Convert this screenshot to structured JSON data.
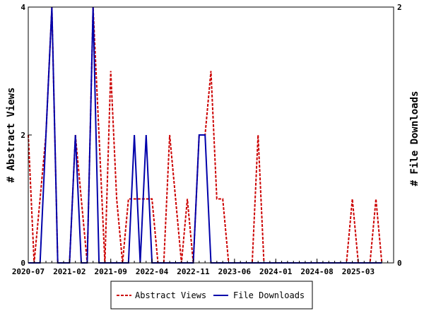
{
  "chart_data": {
    "type": "line",
    "title": "",
    "xlabel": "",
    "ylabel": "# Abstract Views",
    "y2label": "# File Downloads",
    "ylim": [
      0,
      4
    ],
    "y2lim": [
      0,
      2
    ],
    "yticks": [
      "0",
      "2",
      "4"
    ],
    "y2ticks": [
      "0",
      "2"
    ],
    "xrange": [
      "2020-07",
      "2025-09"
    ],
    "xtick_labels": [
      "2020-07",
      "2021-02",
      "2021-09",
      "2022-04",
      "2022-11",
      "2023-06",
      "2024-01",
      "2024-08",
      "2025-03"
    ],
    "grid": false,
    "legend_position": "bottom",
    "series": [
      {
        "name": "Abstract Views",
        "axis": "left",
        "color": "#cc0000",
        "style": "dashed",
        "points": [
          [
            "2020-07",
            2
          ],
          [
            "2020-08",
            0
          ],
          [
            "2020-09",
            1
          ],
          [
            "2020-10",
            2
          ],
          [
            "2020-11",
            4
          ],
          [
            "2020-12",
            0
          ],
          [
            "2021-01",
            0
          ],
          [
            "2021-02",
            0
          ],
          [
            "2021-03",
            2
          ],
          [
            "2021-04",
            1
          ],
          [
            "2021-05",
            0
          ],
          [
            "2021-06",
            4
          ],
          [
            "2021-07",
            2
          ],
          [
            "2021-08",
            0
          ],
          [
            "2021-09",
            3
          ],
          [
            "2021-10",
            1
          ],
          [
            "2021-11",
            0
          ],
          [
            "2021-12",
            1
          ],
          [
            "2022-01",
            1
          ],
          [
            "2022-02",
            1
          ],
          [
            "2022-03",
            1
          ],
          [
            "2022-04",
            1
          ],
          [
            "2022-05",
            0
          ],
          [
            "2022-06",
            0
          ],
          [
            "2022-07",
            2
          ],
          [
            "2022-08",
            1
          ],
          [
            "2022-09",
            0
          ],
          [
            "2022-10",
            1
          ],
          [
            "2022-11",
            0
          ],
          [
            "2022-12",
            2
          ],
          [
            "2023-01",
            2
          ],
          [
            "2023-02",
            3
          ],
          [
            "2023-03",
            1
          ],
          [
            "2023-04",
            1
          ],
          [
            "2023-05",
            0
          ],
          [
            "2023-06",
            0
          ],
          [
            "2023-07",
            0
          ],
          [
            "2023-08",
            0
          ],
          [
            "2023-09",
            0
          ],
          [
            "2023-10",
            2
          ],
          [
            "2023-11",
            0
          ],
          [
            "2023-12",
            0
          ],
          [
            "2024-01",
            0
          ],
          [
            "2024-02",
            0
          ],
          [
            "2024-03",
            0
          ],
          [
            "2024-04",
            0
          ],
          [
            "2024-05",
            0
          ],
          [
            "2024-06",
            0
          ],
          [
            "2024-07",
            0
          ],
          [
            "2024-08",
            0
          ],
          [
            "2024-09",
            0
          ],
          [
            "2024-10",
            0
          ],
          [
            "2024-11",
            0
          ],
          [
            "2024-12",
            0
          ],
          [
            "2025-01",
            0
          ],
          [
            "2025-02",
            1
          ],
          [
            "2025-03",
            0
          ],
          [
            "2025-04",
            0
          ],
          [
            "2025-05",
            0
          ],
          [
            "2025-06",
            1
          ],
          [
            "2025-07",
            0
          ]
        ]
      },
      {
        "name": "File Downloads",
        "axis": "right",
        "color": "#0000aa",
        "style": "solid",
        "points": [
          [
            "2020-07",
            0
          ],
          [
            "2020-08",
            0
          ],
          [
            "2020-09",
            0
          ],
          [
            "2020-10",
            1
          ],
          [
            "2020-11",
            2
          ],
          [
            "2020-12",
            0
          ],
          [
            "2021-01",
            0
          ],
          [
            "2021-02",
            0
          ],
          [
            "2021-03",
            1
          ],
          [
            "2021-04",
            0
          ],
          [
            "2021-05",
            0
          ],
          [
            "2021-06",
            2
          ],
          [
            "2021-07",
            0
          ],
          [
            "2021-08",
            0
          ],
          [
            "2021-09",
            0
          ],
          [
            "2021-10",
            0
          ],
          [
            "2021-11",
            0
          ],
          [
            "2021-12",
            0
          ],
          [
            "2022-01",
            1
          ],
          [
            "2022-02",
            0
          ],
          [
            "2022-03",
            1
          ],
          [
            "2022-04",
            0
          ],
          [
            "2022-05",
            0
          ],
          [
            "2022-06",
            0
          ],
          [
            "2022-07",
            0
          ],
          [
            "2022-08",
            0
          ],
          [
            "2022-09",
            0
          ],
          [
            "2022-10",
            0
          ],
          [
            "2022-11",
            0
          ],
          [
            "2022-12",
            1
          ],
          [
            "2023-01",
            1
          ],
          [
            "2023-02",
            0
          ],
          [
            "2023-03",
            0
          ],
          [
            "2023-04",
            0
          ],
          [
            "2023-05",
            0
          ],
          [
            "2023-06",
            0
          ],
          [
            "2023-07",
            0
          ],
          [
            "2023-08",
            0
          ],
          [
            "2023-09",
            0
          ],
          [
            "2023-10",
            0
          ],
          [
            "2023-11",
            0
          ],
          [
            "2023-12",
            0
          ],
          [
            "2024-01",
            0
          ],
          [
            "2024-02",
            0
          ],
          [
            "2024-03",
            0
          ],
          [
            "2024-04",
            0
          ],
          [
            "2024-05",
            0
          ],
          [
            "2024-06",
            0
          ],
          [
            "2024-07",
            0
          ],
          [
            "2024-08",
            0
          ],
          [
            "2024-09",
            0
          ],
          [
            "2024-10",
            0
          ],
          [
            "2024-11",
            0
          ],
          [
            "2024-12",
            0
          ],
          [
            "2025-01",
            0
          ],
          [
            "2025-02",
            0
          ],
          [
            "2025-03",
            0
          ],
          [
            "2025-04",
            0
          ],
          [
            "2025-05",
            0
          ],
          [
            "2025-06",
            0
          ],
          [
            "2025-07",
            0
          ]
        ]
      }
    ]
  }
}
